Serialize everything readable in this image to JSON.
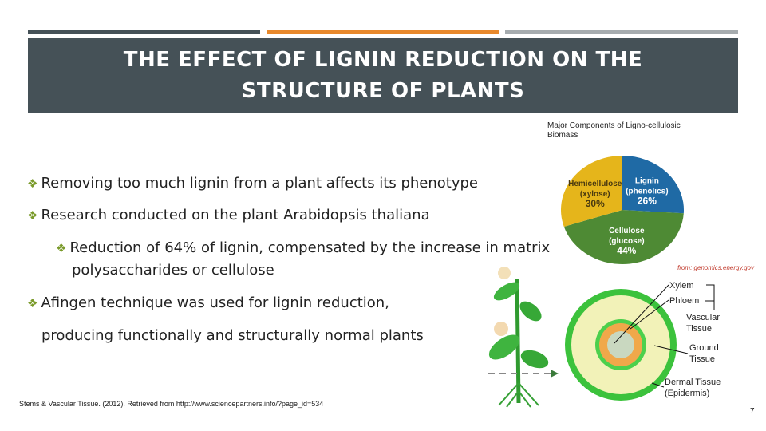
{
  "header_bar_colors": [
    "#455157",
    "#e8892c",
    "#a6acaf"
  ],
  "title": [
    "THE EFFECT OF LIGNIN REDUCTION ON THE",
    "STRUCTURE OF PLANTS"
  ],
  "bullets": [
    {
      "text": "Removing too much lignin from a plant affects its phenotype",
      "level": 1
    },
    {
      "text": "Research conducted on the plant Arabidopsis thaliana",
      "level": 1
    },
    {
      "text": "Reduction of 64% of lignin, compensated by the increase in matrix",
      "continuation": "polysaccharides or cellulose",
      "level": 2
    },
    {
      "text": "Afingen technique was used for lignin reduction,",
      "level": 1
    },
    {
      "text": "producing functionally and structurally normal plants",
      "level": 1
    }
  ],
  "bullet_icon": "diamond-bullet-icon",
  "chart_data": {
    "type": "pie",
    "title": "Major Components of Ligno-cellulosic Biomass",
    "source": "from: genomics.energy.gov",
    "slices": [
      {
        "label": "Lignin",
        "sublabel": "(phenolics)",
        "value": 26,
        "display": "26%",
        "color": "#1f6aa5"
      },
      {
        "label": "Cellulose",
        "sublabel": "(glucose)",
        "value": 44,
        "display": "44%",
        "color": "#4e8a34"
      },
      {
        "label": "Hemicellulose",
        "sublabel": "(xylose)",
        "value": 30,
        "display": "30%",
        "color": "#e5b51b"
      }
    ]
  },
  "stem_diagram": {
    "labels": [
      "Xylem",
      "Phloem",
      "Vascular",
      "Tissue",
      "Ground",
      "Tissue",
      "Dermal Tissue",
      "(Epidermis)"
    ]
  },
  "citation": "Stems & Vascular Tissue. (2012). Retrieved from http://www.sciencepartners.info/?page_id=534",
  "page_number": "7"
}
